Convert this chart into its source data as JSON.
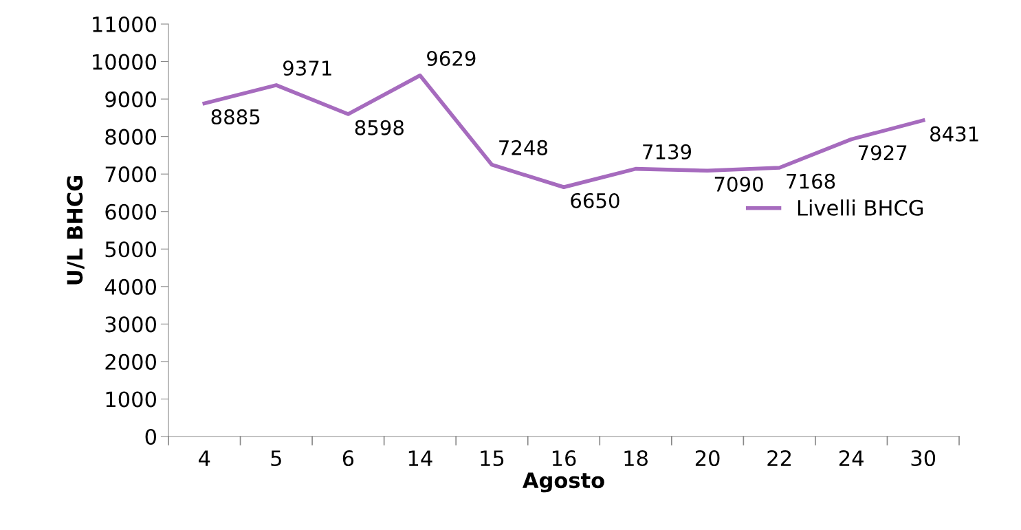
{
  "chart_data": {
    "type": "line",
    "xlabel": "Agosto",
    "ylabel": "U/L BHCG",
    "categories": [
      "4",
      "5",
      "6",
      "14",
      "15",
      "16",
      "18",
      "20",
      "22",
      "24",
      "30"
    ],
    "series": [
      {
        "name": "Livelli BHCG",
        "color": "#a66bbe",
        "values": [
          8885,
          9371,
          8598,
          9629,
          7248,
          6650,
          7139,
          7090,
          7168,
          7927,
          8431
        ]
      }
    ],
    "ylim": [
      0,
      11000
    ],
    "yticks": [
      0,
      1000,
      2000,
      3000,
      4000,
      5000,
      6000,
      7000,
      8000,
      9000,
      10000,
      11000
    ],
    "data_labels": true,
    "grid": false,
    "legend": "right",
    "marker": "none",
    "line_style": "solid"
  }
}
